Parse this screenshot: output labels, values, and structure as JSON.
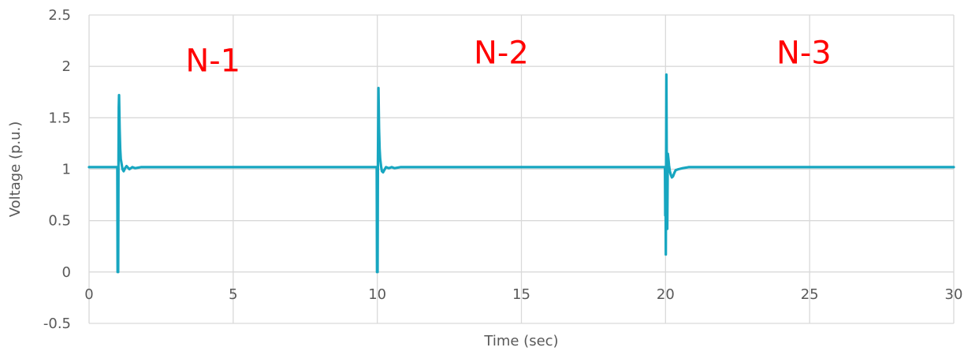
{
  "chart_data": {
    "type": "line",
    "title": "",
    "xlabel": "Time (sec)",
    "ylabel": "Voltage (p.u.)",
    "xlim": [
      0,
      30
    ],
    "ylim": [
      -0.5,
      2.5
    ],
    "x_ticks": [
      0,
      5,
      10,
      15,
      20,
      25,
      30
    ],
    "y_ticks": [
      -0.5,
      0,
      0.5,
      1,
      1.5,
      2,
      2.5
    ],
    "x_tick_labels": [
      "0",
      "5",
      "10",
      "15",
      "20",
      "25",
      "30"
    ],
    "y_tick_labels": [
      "-0.5",
      "0",
      "0.5",
      "1",
      "1.5",
      "2",
      "2.5"
    ],
    "grid": "vertical and horizontal",
    "legend": "none",
    "series": [
      {
        "color": "#17a6c0",
        "x": [
          0,
          0.98,
          0.99,
          1.0,
          1.01,
          1.02,
          1.03,
          1.04,
          1.06,
          1.08,
          1.1,
          1.13,
          1.16,
          1.2,
          1.25,
          1.3,
          1.4,
          1.5,
          1.6,
          1.8,
          2.0,
          9.98,
          9.99,
          10.0,
          10.01,
          10.02,
          10.04,
          10.06,
          10.08,
          10.1,
          10.13,
          10.16,
          10.2,
          10.3,
          10.4,
          10.5,
          10.6,
          10.8,
          11.0,
          19.98,
          19.99,
          20.0,
          20.01,
          20.02,
          20.03,
          20.04,
          20.06,
          20.08,
          20.1,
          20.12,
          20.15,
          20.18,
          20.22,
          20.26,
          20.3,
          20.35,
          20.45,
          20.6,
          20.8,
          21.0,
          21.5,
          22.0,
          30
        ],
        "y": [
          1.02,
          1.02,
          0.0,
          1.0,
          0.0,
          1.02,
          1.6,
          1.72,
          1.4,
          1.2,
          1.1,
          1.05,
          1.0,
          0.98,
          1.01,
          1.03,
          1.0,
          1.02,
          1.01,
          1.02,
          1.02,
          1.02,
          0.0,
          1.02,
          0.0,
          1.02,
          1.79,
          1.4,
          1.2,
          1.1,
          1.03,
          0.98,
          0.97,
          1.02,
          1.01,
          1.02,
          1.01,
          1.02,
          1.02,
          1.02,
          0.55,
          1.02,
          0.17,
          1.02,
          1.92,
          1.2,
          0.42,
          1.15,
          1.1,
          1.04,
          0.98,
          0.95,
          0.92,
          0.93,
          0.96,
          0.99,
          1.0,
          1.01,
          1.02,
          1.02,
          1.02,
          1.02,
          1.02
        ]
      }
    ],
    "annotations": [
      {
        "text": "N-1",
        "x": 4.3,
        "y": 1.95,
        "color": "#ff0000"
      },
      {
        "text": "N-2",
        "x": 14.3,
        "y": 2.03,
        "color": "#ff0000"
      },
      {
        "text": "N-3",
        "x": 24.8,
        "y": 2.03,
        "color": "#ff0000"
      }
    ]
  }
}
